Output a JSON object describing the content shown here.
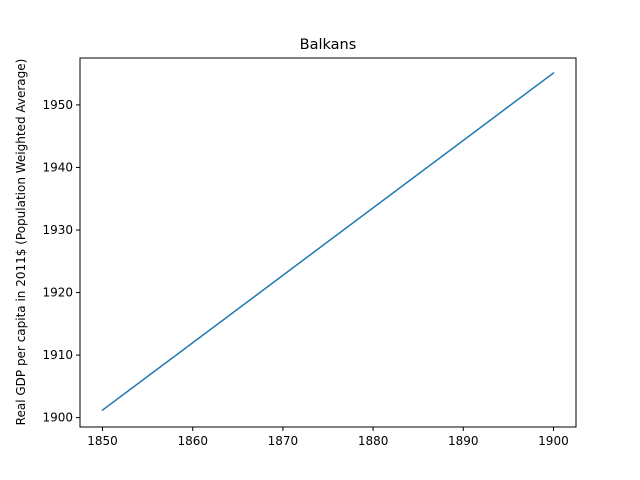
{
  "chart_data": {
    "type": "line",
    "title": "Balkans",
    "xlabel": "",
    "ylabel": "Real GDP per capita in 2011$ (Population Weighted Average)",
    "xlim": [
      1847.5,
      1902.5
    ],
    "ylim": [
      1898.5,
      1957.5
    ],
    "x_ticks": [
      1850,
      1860,
      1870,
      1880,
      1890,
      1900
    ],
    "y_ticks": [
      1900,
      1910,
      1920,
      1930,
      1940,
      1950
    ],
    "grid": false,
    "series": [
      {
        "color": "#1f77b4",
        "x": [
          1850,
          1900
        ],
        "y": [
          1901.2,
          1955.1
        ]
      }
    ]
  }
}
